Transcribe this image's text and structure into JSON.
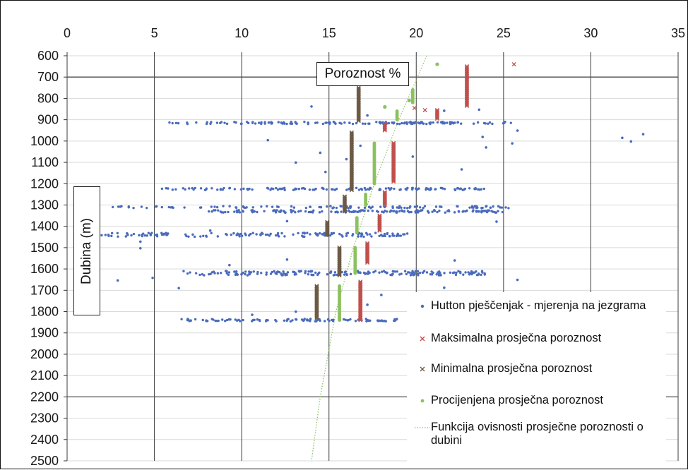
{
  "chart_data": {
    "type": "scatter",
    "title": "Poroznost %",
    "ylabel": "Dubina (m)",
    "x_axis_position": "top",
    "y_axis_inverted": true,
    "xlim": [
      0,
      35
    ],
    "ylim": [
      600,
      2500
    ],
    "x_ticks": [
      "0",
      "5",
      "10",
      "15",
      "20",
      "25",
      "30",
      "35"
    ],
    "y_ticks": [
      "600",
      "700",
      "800",
      "900",
      "1000",
      "1100",
      "1200",
      "1300",
      "1400",
      "1500",
      "1600",
      "1700",
      "1800",
      "1900",
      "2000",
      "2100",
      "2200",
      "2300",
      "2400",
      "2500"
    ],
    "gridlines": {
      "major_x": [
        0,
        5,
        10,
        15,
        20,
        25,
        30,
        35
      ],
      "major_y": [
        700,
        2200
      ],
      "minor_y_step": 100
    },
    "legend_position": "bottom-right",
    "series": [
      {
        "name": "Hutton pješčenjak - mjerenja na jezgrama",
        "marker": "dot",
        "color": "#4a6bbd",
        "clusters": [
          {
            "depth": 915,
            "x_min": 5.5,
            "x_max": 25.5,
            "n": 150,
            "spread": 10
          },
          {
            "depth": 1225,
            "x_min": 5.2,
            "x_max": 24.0,
            "n": 130,
            "spread": 10
          },
          {
            "depth": 1310,
            "x_min": 2.5,
            "x_max": 25.5,
            "n": 110,
            "spread": 10
          },
          {
            "depth": 1330,
            "x_min": 8.0,
            "x_max": 25.0,
            "n": 160,
            "spread": 12
          },
          {
            "depth": 1440,
            "x_min": 1.3,
            "x_max": 19.5,
            "n": 150,
            "spread": 18
          },
          {
            "depth": 1620,
            "x_min": 6.5,
            "x_max": 24.0,
            "n": 190,
            "spread": 20
          },
          {
            "depth": 1840,
            "x_min": 6.5,
            "x_max": 19.0,
            "n": 100,
            "spread": 12
          }
        ],
        "points": [
          [
            14.0,
            838
          ],
          [
            17.2,
            880
          ],
          [
            21.6,
            858
          ],
          [
            23.6,
            853
          ],
          [
            25.8,
            951
          ],
          [
            23.8,
            981
          ],
          [
            24.0,
            1030
          ],
          [
            25.5,
            1011
          ],
          [
            11.5,
            996
          ],
          [
            16.8,
            1022
          ],
          [
            14.5,
            1055
          ],
          [
            16.0,
            1085
          ],
          [
            19.8,
            1073
          ],
          [
            13.1,
            1101
          ],
          [
            14.8,
            1145
          ],
          [
            22.6,
            1133
          ],
          [
            31.8,
            985
          ],
          [
            32.3,
            1002
          ],
          [
            33.0,
            968
          ],
          [
            12.6,
            1376
          ],
          [
            24.6,
            1378
          ],
          [
            8.2,
            1420
          ],
          [
            4.2,
            1472
          ],
          [
            4.2,
            1503
          ],
          [
            4.9,
            1642
          ],
          [
            2.9,
            1654
          ],
          [
            6.4,
            1690
          ],
          [
            9.3,
            1582
          ],
          [
            12.6,
            1556
          ],
          [
            15.6,
            1553
          ],
          [
            15.6,
            1735
          ],
          [
            18.0,
            1722
          ],
          [
            21.6,
            1688
          ],
          [
            25.8,
            1651
          ],
          [
            22.2,
            1560
          ],
          [
            17.2,
            1768
          ],
          [
            10.6,
            1815
          ],
          [
            13.1,
            1800
          ]
        ]
      },
      {
        "name": "Maksimalna prosječna poroznost",
        "marker": "x",
        "color": "#c0504d",
        "segments": [
          {
            "x": 22.9,
            "d_start": 650,
            "d_end": 835
          },
          {
            "x": 21.2,
            "d_start": 855,
            "d_end": 895
          },
          {
            "x": 18.2,
            "d_start": 920,
            "d_end": 950
          },
          {
            "x": 18.7,
            "d_start": 1010,
            "d_end": 1190
          },
          {
            "x": 18.2,
            "d_start": 1240,
            "d_end": 1300
          },
          {
            "x": 17.9,
            "d_start": 1350,
            "d_end": 1420
          },
          {
            "x": 17.2,
            "d_start": 1480,
            "d_end": 1570
          },
          {
            "x": 16.8,
            "d_start": 1660,
            "d_end": 1840
          }
        ],
        "points": [
          [
            25.6,
            640
          ],
          [
            20.5,
            855
          ],
          [
            19.9,
            845
          ]
        ]
      },
      {
        "name": "Minimalna prosječna poroznost",
        "marker": "x",
        "color": "#6d5a45",
        "segments": [
          {
            "x": 16.7,
            "d_start": 750,
            "d_end": 905
          },
          {
            "x": 16.3,
            "d_start": 960,
            "d_end": 1230
          },
          {
            "x": 15.9,
            "d_start": 1260,
            "d_end": 1330
          },
          {
            "x": 14.9,
            "d_start": 1380,
            "d_end": 1440
          },
          {
            "x": 15.6,
            "d_start": 1500,
            "d_end": 1630
          },
          {
            "x": 14.3,
            "d_start": 1680,
            "d_end": 1830
          }
        ]
      },
      {
        "name": "Procijenjena prosječna poroznost",
        "marker": "dot",
        "color": "#8cc160",
        "segments": [
          {
            "x": 19.8,
            "d_start": 760,
            "d_end": 820
          },
          {
            "x": 18.9,
            "d_start": 860,
            "d_end": 900
          },
          {
            "x": 17.6,
            "d_start": 1010,
            "d_end": 1200
          },
          {
            "x": 17.1,
            "d_start": 1250,
            "d_end": 1300
          },
          {
            "x": 16.6,
            "d_start": 1360,
            "d_end": 1430
          },
          {
            "x": 16.5,
            "d_start": 1500,
            "d_end": 1620
          },
          {
            "x": 15.6,
            "d_start": 1680,
            "d_end": 1840
          }
        ],
        "points": [
          [
            21.2,
            640
          ],
          [
            18.2,
            840
          ],
          [
            19.6,
            810
          ]
        ]
      },
      {
        "name": "Funkcija ovisnosti prosječne poroznosti o dubini",
        "marker": "dotted-line",
        "color": "#8cc160",
        "x": [
          20.6,
          19.0,
          17.6,
          16.4,
          15.4,
          14.5,
          14.0
        ],
        "y": [
          600,
          900,
          1200,
          1500,
          1800,
          2200,
          2500
        ]
      }
    ],
    "legend": [
      {
        "label": "Hutton pješčenjak - mjerenja na jezgrama",
        "marker": "dot",
        "color": "#4a6bbd"
      },
      {
        "label": "Maksimalna prosječna poroznost",
        "marker": "x",
        "color": "#c0504d"
      },
      {
        "label": "Minimalna prosječna poroznost",
        "marker": "x",
        "color": "#6d5a45"
      },
      {
        "label": "Procijenjena prosječna poroznost",
        "marker": "dot",
        "color": "#8cc160"
      },
      {
        "label": "Funkcija ovisnosti prosječne poroznosti o dubini",
        "marker": "dotted-line",
        "color": "#8cc160"
      }
    ]
  }
}
